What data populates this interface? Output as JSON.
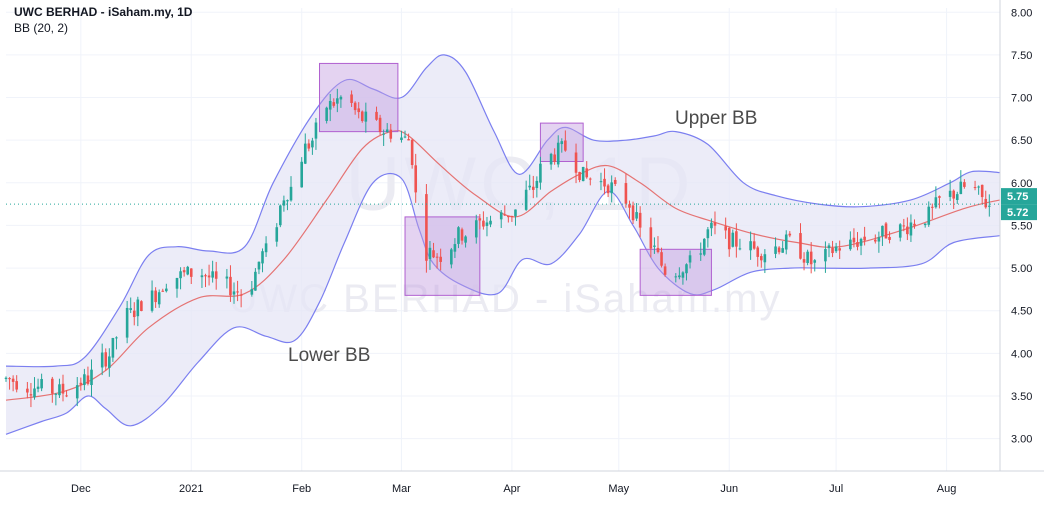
{
  "header": {
    "title": "UWC BERHAD - iSaham.my, 1D",
    "indicator": "BB (20, 2)"
  },
  "annotations": {
    "upper_label": "Upper BB",
    "lower_label": "Lower BB"
  },
  "watermark": {
    "large": "UWC, 1D",
    "small": "UWC BERHAD - iSaham.my"
  },
  "price_tags": {
    "dotted_level": "5.75",
    "last_price": "5.72"
  },
  "colors": {
    "up": "#26a69a",
    "down": "#ef5350",
    "band_line": "#7b7ff0",
    "band_fill": "#e6e6f6",
    "basis_line": "#e57373",
    "box_fill": "#c39ee0",
    "box_stroke": "#b060d0",
    "dotted_line": "#26a69a",
    "tag_bg": "#26a69a"
  },
  "chart_data": {
    "type": "candlestick",
    "title": "UWC BERHAD - iSaham.my, 1D",
    "indicator": "Bollinger Bands (20, 2)",
    "yaxis": {
      "ticks": [
        "8.00",
        "7.50",
        "7.00",
        "6.50",
        "6.00",
        "5.50",
        "5.00",
        "4.50",
        "4.00",
        "3.50",
        "3.00"
      ],
      "range": [
        2.62,
        8.05
      ]
    },
    "xaxis": {
      "ticks": [
        {
          "label": "Dec",
          "date": "2020-12-01"
        },
        {
          "label": "2021",
          "date": "2021-01-01"
        },
        {
          "label": "Feb",
          "date": "2021-02-01"
        },
        {
          "label": "Mar",
          "date": "2021-03-01"
        },
        {
          "label": "Apr",
          "date": "2021-04-01"
        },
        {
          "label": "May",
          "date": "2021-05-01"
        },
        {
          "label": "Jun",
          "date": "2021-06-01"
        },
        {
          "label": "Jul",
          "date": "2021-07-01"
        },
        {
          "label": "Aug",
          "date": "2021-08-01"
        }
      ],
      "range": [
        "2020-11-10",
        "2021-08-16"
      ]
    },
    "ohlc_anchors": [
      [
        "2020-11-10",
        3.7
      ],
      [
        "2020-11-18",
        3.6
      ],
      [
        "2020-11-26",
        3.55
      ],
      [
        "2020-12-02",
        3.68
      ],
      [
        "2020-12-08",
        3.95
      ],
      [
        "2020-12-14",
        4.45
      ],
      [
        "2020-12-20",
        4.65
      ],
      [
        "2020-12-27",
        4.9
      ],
      [
        "2021-01-03",
        4.95
      ],
      [
        "2021-01-10",
        4.8
      ],
      [
        "2021-01-16",
        4.7
      ],
      [
        "2021-01-22",
        5.2
      ],
      [
        "2021-01-28",
        5.9
      ],
      [
        "2021-02-03",
        6.45
      ],
      [
        "2021-02-08",
        6.9
      ],
      [
        "2021-02-13",
        7.0
      ],
      [
        "2021-02-18",
        6.75
      ],
      [
        "2021-02-25",
        6.6
      ],
      [
        "2021-03-03",
        6.5
      ],
      [
        "2021-03-07",
        5.2
      ],
      [
        "2021-03-12",
        5.15
      ],
      [
        "2021-03-18",
        5.4
      ],
      [
        "2021-03-25",
        5.55
      ],
      [
        "2021-04-01",
        5.65
      ],
      [
        "2021-04-06",
        5.9
      ],
      [
        "2021-04-11",
        6.3
      ],
      [
        "2021-04-16",
        6.4
      ],
      [
        "2021-04-22",
        6.05
      ],
      [
        "2021-04-27",
        6.0
      ],
      [
        "2021-05-03",
        5.8
      ],
      [
        "2021-05-09",
        5.3
      ],
      [
        "2021-05-15",
        4.95
      ],
      [
        "2021-05-21",
        5.05
      ],
      [
        "2021-05-27",
        5.45
      ],
      [
        "2021-06-03",
        5.3
      ],
      [
        "2021-06-10",
        5.2
      ],
      [
        "2021-06-18",
        5.3
      ],
      [
        "2021-06-25",
        5.05
      ],
      [
        "2021-07-02",
        5.25
      ],
      [
        "2021-07-10",
        5.35
      ],
      [
        "2021-07-18",
        5.45
      ],
      [
        "2021-07-26",
        5.6
      ],
      [
        "2021-08-01",
        5.85
      ],
      [
        "2021-08-07",
        5.95
      ],
      [
        "2021-08-14",
        5.72
      ]
    ],
    "upper_band": [
      [
        "2020-11-10",
        3.85
      ],
      [
        "2020-11-24",
        3.85
      ],
      [
        "2020-12-02",
        3.95
      ],
      [
        "2020-12-12",
        4.55
      ],
      [
        "2020-12-20",
        5.15
      ],
      [
        "2020-12-28",
        5.25
      ],
      [
        "2021-01-06",
        5.2
      ],
      [
        "2021-01-16",
        5.25
      ],
      [
        "2021-01-24",
        6.0
      ],
      [
        "2021-02-04",
        6.8
      ],
      [
        "2021-02-13",
        7.2
      ],
      [
        "2021-02-21",
        7.1
      ],
      [
        "2021-03-01",
        7.0
      ],
      [
        "2021-03-08",
        7.35
      ],
      [
        "2021-03-13",
        7.5
      ],
      [
        "2021-03-19",
        7.3
      ],
      [
        "2021-03-27",
        6.6
      ],
      [
        "2021-04-03",
        6.1
      ],
      [
        "2021-04-11",
        6.5
      ],
      [
        "2021-04-16",
        6.65
      ],
      [
        "2021-04-24",
        6.5
      ],
      [
        "2021-05-03",
        6.5
      ],
      [
        "2021-05-11",
        6.55
      ],
      [
        "2021-05-17",
        6.6
      ],
      [
        "2021-05-26",
        6.45
      ],
      [
        "2021-06-05",
        6.0
      ],
      [
        "2021-06-14",
        5.85
      ],
      [
        "2021-06-26",
        5.75
      ],
      [
        "2021-07-08",
        5.72
      ],
      [
        "2021-07-22",
        5.8
      ],
      [
        "2021-08-02",
        6.0
      ],
      [
        "2021-08-08",
        6.13
      ],
      [
        "2021-08-16",
        6.12
      ]
    ],
    "lower_band": [
      [
        "2020-11-10",
        3.05
      ],
      [
        "2020-11-20",
        3.2
      ],
      [
        "2020-11-27",
        3.3
      ],
      [
        "2020-12-03",
        3.5
      ],
      [
        "2020-12-08",
        3.35
      ],
      [
        "2020-12-15",
        3.15
      ],
      [
        "2020-12-24",
        3.4
      ],
      [
        "2021-01-03",
        3.9
      ],
      [
        "2021-01-13",
        4.3
      ],
      [
        "2021-01-22",
        4.2
      ],
      [
        "2021-01-30",
        4.15
      ],
      [
        "2021-02-06",
        4.6
      ],
      [
        "2021-02-13",
        5.3
      ],
      [
        "2021-02-21",
        6.0
      ],
      [
        "2021-03-01",
        6.05
      ],
      [
        "2021-03-06",
        5.45
      ],
      [
        "2021-03-10",
        5.05
      ],
      [
        "2021-03-18",
        4.8
      ],
      [
        "2021-03-28",
        4.7
      ],
      [
        "2021-04-04",
        5.1
      ],
      [
        "2021-04-12",
        5.05
      ],
      [
        "2021-04-20",
        5.4
      ],
      [
        "2021-04-28",
        5.9
      ],
      [
        "2021-05-05",
        5.5
      ],
      [
        "2021-05-12",
        5.0
      ],
      [
        "2021-05-21",
        4.7
      ],
      [
        "2021-05-28",
        4.75
      ],
      [
        "2021-06-07",
        4.95
      ],
      [
        "2021-06-18",
        5.0
      ],
      [
        "2021-06-27",
        5.0
      ],
      [
        "2021-07-10",
        5.0
      ],
      [
        "2021-07-25",
        5.05
      ],
      [
        "2021-08-03",
        5.3
      ],
      [
        "2021-08-16",
        5.38
      ]
    ],
    "basis": [
      [
        "2020-11-10",
        3.45
      ],
      [
        "2020-11-26",
        3.55
      ],
      [
        "2020-12-08",
        3.8
      ],
      [
        "2020-12-20",
        4.3
      ],
      [
        "2021-01-03",
        4.65
      ],
      [
        "2021-01-16",
        4.7
      ],
      [
        "2021-01-27",
        5.1
      ],
      [
        "2021-02-08",
        5.8
      ],
      [
        "2021-02-18",
        6.4
      ],
      [
        "2021-02-26",
        6.6
      ],
      [
        "2021-03-03",
        6.55
      ],
      [
        "2021-03-12",
        6.2
      ],
      [
        "2021-03-22",
        5.85
      ],
      [
        "2021-04-02",
        5.6
      ],
      [
        "2021-04-12",
        5.9
      ],
      [
        "2021-04-20",
        6.1
      ],
      [
        "2021-04-28",
        6.2
      ],
      [
        "2021-05-07",
        6.0
      ],
      [
        "2021-05-17",
        5.7
      ],
      [
        "2021-05-27",
        5.55
      ],
      [
        "2021-06-08",
        5.4
      ],
      [
        "2021-06-20",
        5.3
      ],
      [
        "2021-07-02",
        5.25
      ],
      [
        "2021-07-20",
        5.45
      ],
      [
        "2021-08-06",
        5.7
      ],
      [
        "2021-08-16",
        5.8
      ]
    ],
    "highlight_boxes": [
      {
        "from": "2021-02-06",
        "to": "2021-02-28",
        "low": 6.6,
        "high": 7.4
      },
      {
        "from": "2021-03-02",
        "to": "2021-03-23",
        "low": 4.68,
        "high": 5.6
      },
      {
        "from": "2021-04-09",
        "to": "2021-04-21",
        "low": 6.25,
        "high": 6.7
      },
      {
        "from": "2021-05-07",
        "to": "2021-05-27",
        "low": 4.68,
        "high": 5.22
      }
    ],
    "last_price": 5.72,
    "dotted_level": 5.75,
    "grid": true,
    "legend": "top-left"
  }
}
